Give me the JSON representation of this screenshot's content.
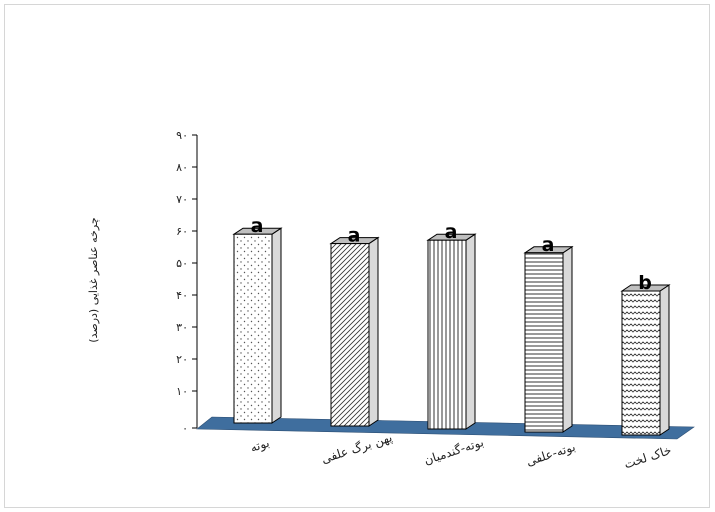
{
  "chart_data": {
    "type": "bar",
    "title": "",
    "xlabel": "",
    "ylabel": "چرخه عناصر غذایی (درصد)",
    "ylim": [
      0,
      90
    ],
    "y_ticks": [
      "۰",
      "۱۰",
      "۲۰",
      "۳۰",
      "۴۰",
      "۵۰",
      "۶۰",
      "۷۰",
      "۸۰",
      "۹۰"
    ],
    "y_tick_values": [
      0,
      10,
      20,
      30,
      40,
      50,
      60,
      70,
      80,
      90
    ],
    "categories": [
      "بوته",
      "پهن برگ علفی",
      "بوته-گندمیان",
      "بوته-علفی",
      "خاک لخت"
    ],
    "values": [
      59,
      57,
      59,
      56,
      45
    ],
    "significance": [
      "a",
      "a",
      "a",
      "a",
      "b"
    ],
    "grid": false,
    "legend": "none",
    "colors": {
      "floor": "#3f6e9e",
      "bar_fill": "#ffffff",
      "bar_stroke": "#000000"
    }
  }
}
